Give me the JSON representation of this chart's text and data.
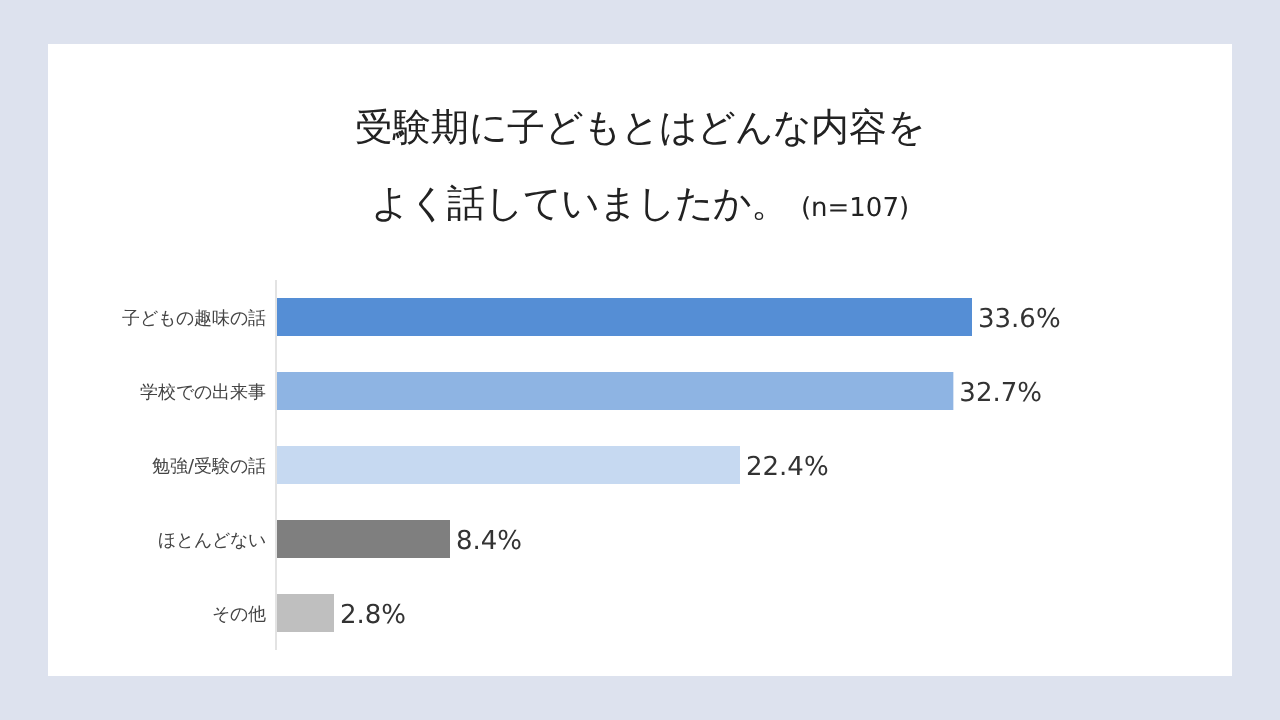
{
  "chart_data": {
    "type": "bar",
    "orientation": "horizontal",
    "title": "受験期に子どもとはどんな内容をよく話していましたか。",
    "subtitle": "(n=107)",
    "categories": [
      "子どもの趣味の話",
      "学校での出来事",
      "勉強/受験の話",
      "ほとんどない",
      "その他"
    ],
    "values": [
      33.6,
      32.7,
      22.4,
      8.4,
      2.8
    ],
    "colors": [
      "#558ed5",
      "#8eb4e3",
      "#c6d9f1",
      "#7f7f7f",
      "#bfbfbf"
    ],
    "value_labels": [
      "33.6%",
      "32.7%",
      "22.4%",
      "8.4%",
      "2.8%"
    ]
  }
}
